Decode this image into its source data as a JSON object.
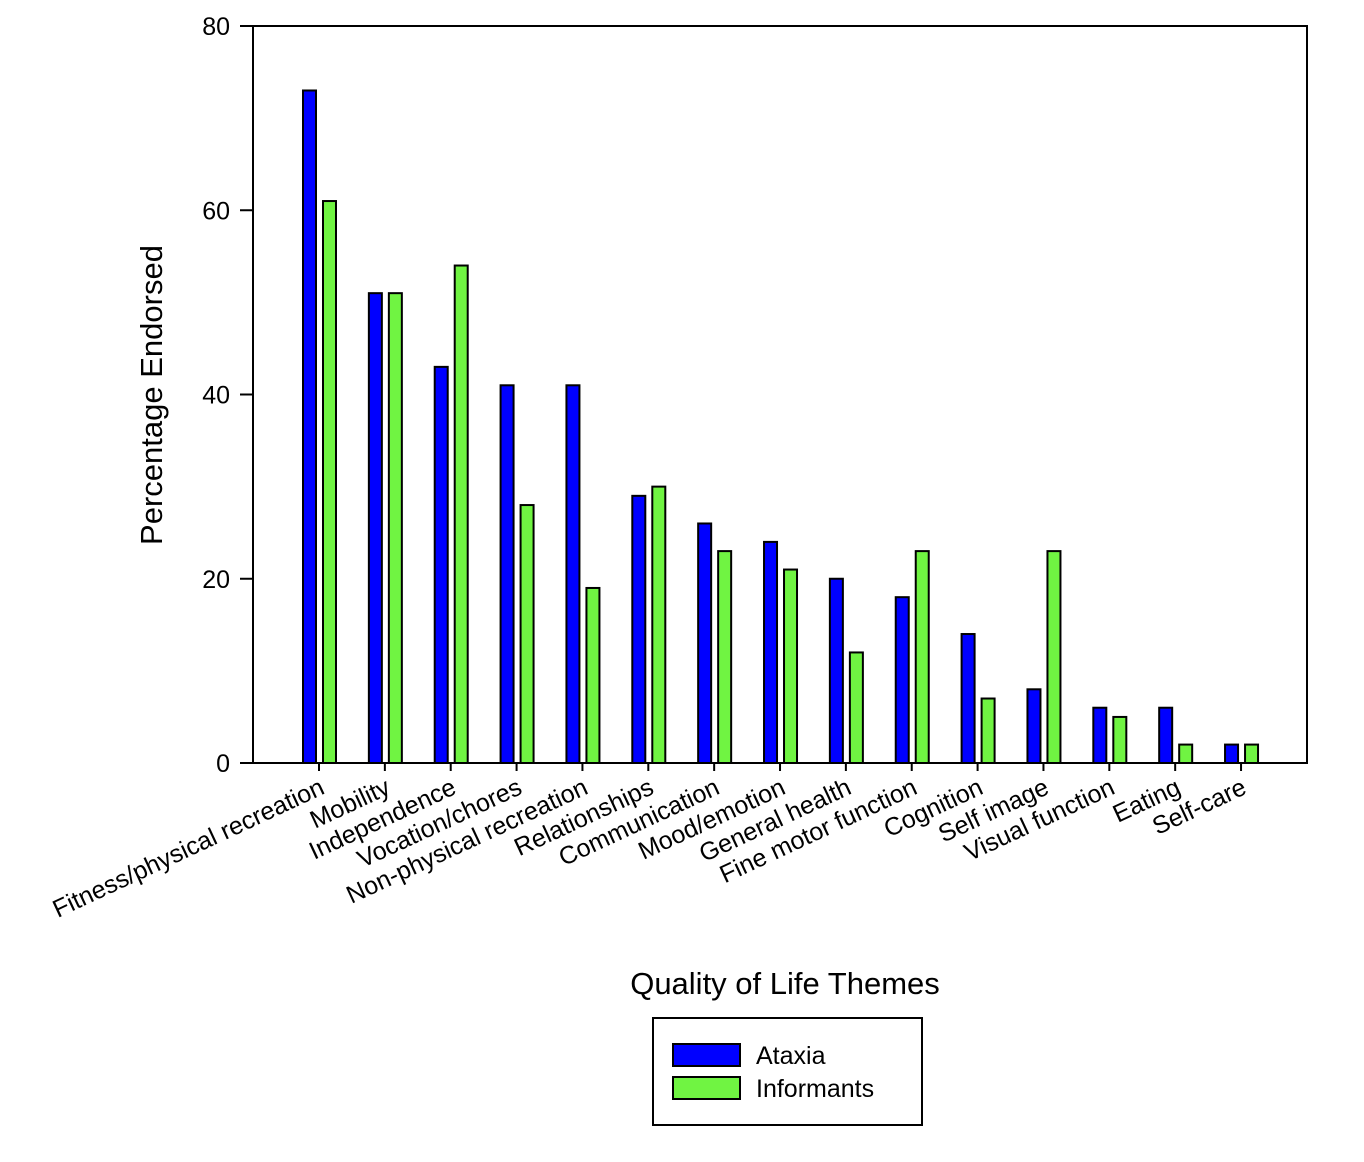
{
  "chart_data": {
    "type": "bar",
    "title": "",
    "xlabel": "Quality of Life Themes",
    "ylabel": "Percentage Endorsed",
    "ylim": [
      0,
      80
    ],
    "yticks": [
      0,
      20,
      40,
      60,
      80
    ],
    "grid": false,
    "legend_position": "bottom-center",
    "categories": [
      "Fitness/physical recreation",
      "Mobility",
      "Independence",
      "Vocation/chores",
      "Non-physical recreation",
      "Relationships",
      "Communication",
      "Mood/emotion",
      "General health",
      "Fine motor function",
      "Cognition",
      "Self image",
      "Visual function",
      "Eating",
      "Self-care"
    ],
    "series": [
      {
        "name": "Ataxia",
        "color": "#0000ff",
        "values": [
          73,
          51,
          43,
          41,
          41,
          29,
          26,
          24,
          20,
          18,
          14,
          8,
          6,
          6,
          2
        ]
      },
      {
        "name": "Informants",
        "color": "#70f442",
        "values": [
          61,
          51,
          54,
          28,
          19,
          30,
          23,
          21,
          12,
          23,
          7,
          23,
          5,
          2,
          2
        ]
      }
    ]
  }
}
